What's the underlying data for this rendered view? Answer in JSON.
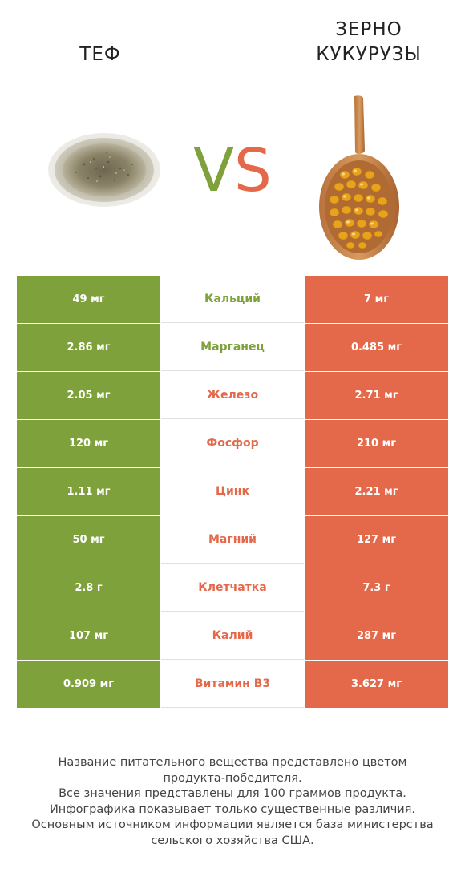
{
  "header": {
    "left_title": "ТЕФ",
    "right_title_line1": "ЗЕРНО",
    "right_title_line2": "КУКУРУЗЫ",
    "vs_v": "V",
    "vs_s": "S"
  },
  "colors": {
    "left_winner": "#7fa13c",
    "right_winner": "#e4694a"
  },
  "rows": [
    {
      "left": "49 мг",
      "nutrient": "Кальций",
      "right": "7 мг",
      "winner": "left"
    },
    {
      "left": "2.86 мг",
      "nutrient": "Марганец",
      "right": "0.485 мг",
      "winner": "left"
    },
    {
      "left": "2.05 мг",
      "nutrient": "Железо",
      "right": "2.71 мг",
      "winner": "right"
    },
    {
      "left": "120 мг",
      "nutrient": "Фосфор",
      "right": "210 мг",
      "winner": "right"
    },
    {
      "left": "1.11 мг",
      "nutrient": "Цинк",
      "right": "2.21 мг",
      "winner": "right"
    },
    {
      "left": "50 мг",
      "nutrient": "Магний",
      "right": "127 мг",
      "winner": "right"
    },
    {
      "left": "2.8 г",
      "nutrient": "Клетчатка",
      "right": "7.3 г",
      "winner": "right"
    },
    {
      "left": "107 мг",
      "nutrient": "Калий",
      "right": "287 мг",
      "winner": "right"
    },
    {
      "left": "0.909 мг",
      "nutrient": "Витамин B3",
      "right": "3.627 мг",
      "winner": "right"
    }
  ],
  "footer": {
    "line1": "Название питательного вещества представлено цветом",
    "line2": "продукта-победителя.",
    "line3": "Все значения представлены для 100 граммов продукта.",
    "line4": "Инфографика показывает только существенные различия.",
    "line5": "Основным источником информации является база министерства",
    "line6": "сельского хозяйства США."
  }
}
